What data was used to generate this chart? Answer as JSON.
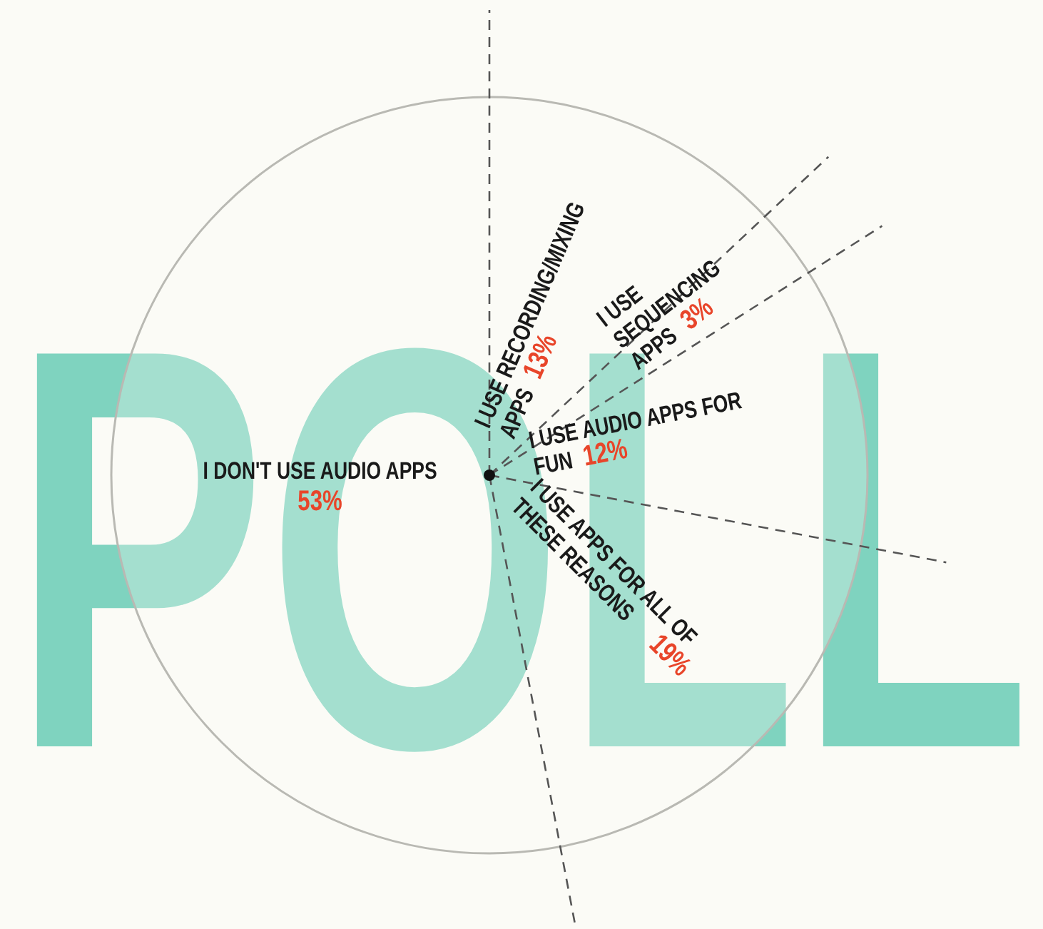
{
  "chart_data": {
    "type": "pie",
    "title": "POLL",
    "categories": [
      "I USE RECORDING/MIXING APPS",
      "I USE SEQUENCING APPS",
      "I USE AUDIO APPS FOR FUN",
      "I USE APPS FOR ALL OF THESE REASONS",
      "I DON'T USE AUDIO APPS"
    ],
    "values": [
      13,
      3,
      12,
      19,
      53
    ],
    "value_labels": [
      "13%",
      "3%",
      "12%",
      "19%",
      "53%"
    ],
    "colors": [
      "#fbfbf6",
      "#fbfbf6",
      "#fbfbf6",
      "#fbfbf6",
      "#fbfbf6"
    ],
    "legend": false
  }
}
